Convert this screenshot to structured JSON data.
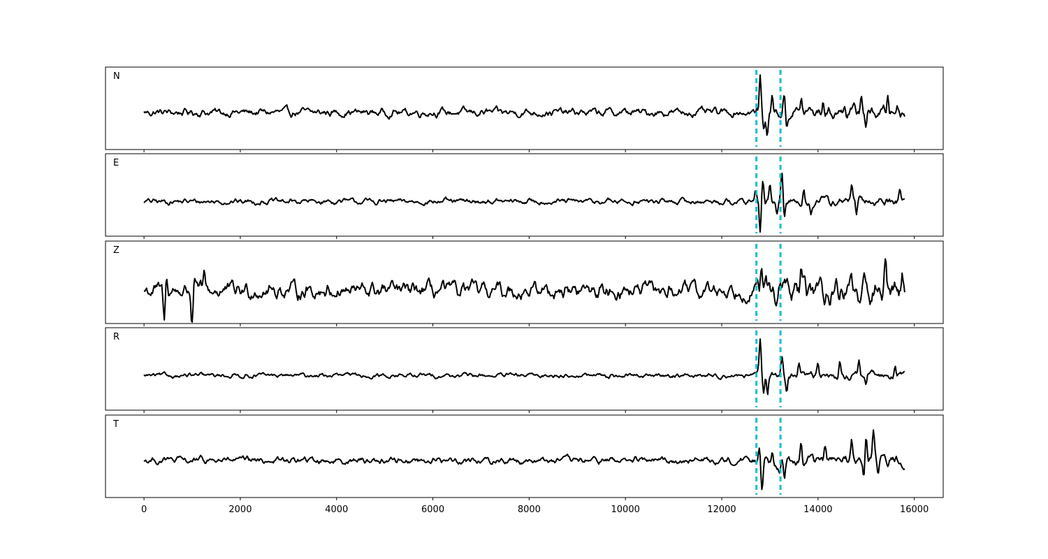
{
  "chart_data": {
    "type": "line",
    "title": "",
    "xlabel": "",
    "ylabel": "",
    "xlim": [
      -800,
      16600
    ],
    "x_ticks": [
      0,
      2000,
      4000,
      6000,
      8000,
      10000,
      12000,
      14000,
      16000
    ],
    "tick_labels": [
      "0",
      "2000",
      "4000",
      "6000",
      "8000",
      "10000",
      "12000",
      "14000",
      "16000"
    ],
    "sample_range": [
      0,
      15800
    ],
    "marker_lines": [
      12720,
      13220
    ],
    "grid": false,
    "colors": {
      "trace": "#000000",
      "markers": "#17becf"
    },
    "panels": [
      {
        "name": "N",
        "noise_amplitude": 0.14,
        "baseline": 0.55,
        "features": [
          [
            12800,
            0.95
          ],
          [
            12870,
            -0.5
          ],
          [
            12950,
            -0.55
          ],
          [
            13050,
            0.4
          ],
          [
            13300,
            0.45
          ],
          [
            13350,
            -0.4
          ],
          [
            13650,
            0.35
          ],
          [
            14100,
            0.3
          ],
          [
            14550,
            0.35
          ],
          [
            14900,
            0.55
          ],
          [
            15000,
            -0.35
          ],
          [
            15450,
            0.45
          ],
          [
            15650,
            0.25
          ]
        ]
      },
      {
        "name": "E",
        "noise_amplitude": 0.1,
        "baseline": 0.58,
        "features": [
          [
            12700,
            0.35
          ],
          [
            12800,
            -0.85
          ],
          [
            12850,
            0.55
          ],
          [
            13000,
            0.35
          ],
          [
            13150,
            -0.35
          ],
          [
            13250,
            0.75
          ],
          [
            13300,
            -0.6
          ],
          [
            13700,
            0.4
          ],
          [
            13850,
            -0.35
          ],
          [
            14700,
            0.55
          ],
          [
            14800,
            -0.45
          ],
          [
            15700,
            0.4
          ]
        ]
      },
      {
        "name": "Z",
        "noise_amplitude": 0.28,
        "baseline": 0.6,
        "features": [
          [
            420,
            -0.85
          ],
          [
            470,
            0.35
          ],
          [
            1000,
            -1.0
          ],
          [
            1040,
            0.4
          ],
          [
            1250,
            0.35
          ],
          [
            12820,
            0.45
          ],
          [
            13650,
            0.4
          ],
          [
            14700,
            0.55
          ],
          [
            14880,
            -0.55
          ],
          [
            15400,
            0.55
          ],
          [
            15750,
            0.45
          ]
        ]
      },
      {
        "name": "R",
        "noise_amplitude": 0.08,
        "baseline": 0.58,
        "features": [
          [
            12800,
            1.0
          ],
          [
            12870,
            -0.45
          ],
          [
            12950,
            -0.5
          ],
          [
            13250,
            0.55
          ],
          [
            13350,
            -0.4
          ],
          [
            13600,
            0.35
          ],
          [
            14000,
            0.3
          ],
          [
            14450,
            0.35
          ],
          [
            14850,
            0.35
          ],
          [
            15000,
            -0.3
          ],
          [
            15600,
            0.35
          ]
        ]
      },
      {
        "name": "T",
        "noise_amplitude": 0.12,
        "baseline": 0.55,
        "features": [
          [
            12780,
            0.5
          ],
          [
            12840,
            -0.75
          ],
          [
            13050,
            0.35
          ],
          [
            13200,
            -0.35
          ],
          [
            13300,
            -0.6
          ],
          [
            13650,
            0.55
          ],
          [
            14150,
            0.35
          ],
          [
            14700,
            0.45
          ],
          [
            14950,
            -0.5
          ],
          [
            15000,
            0.65
          ],
          [
            15150,
            0.7
          ],
          [
            15250,
            -0.4
          ]
        ]
      }
    ]
  }
}
